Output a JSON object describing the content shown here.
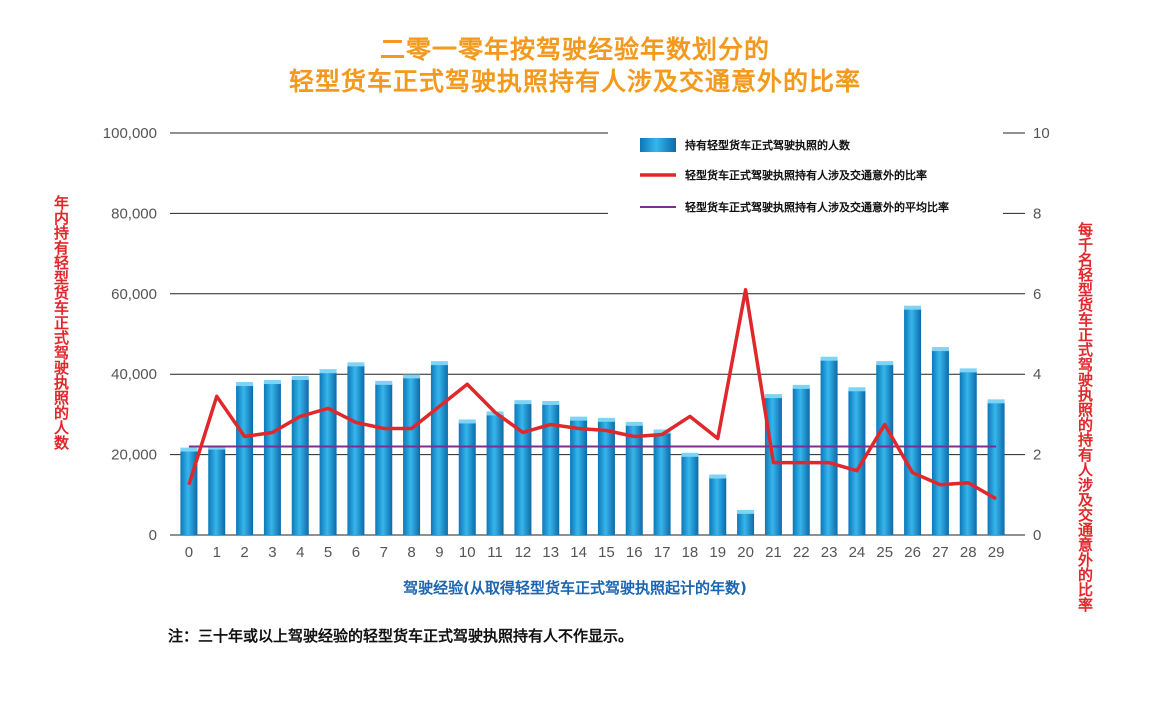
{
  "chart_data": {
    "type": "bar",
    "title": "二零一零年按驾驶经验年数划分的",
    "subtitle": "轻型货车正式驾驶执照持有人涉及交通意外的比率",
    "xlabel": "驾驶经验(从取得轻型货车正式驾驶执照起计的年数)",
    "ylabel": "年内持有轻型货车正式驾驶执照的人数",
    "y2label": "每千名轻型货车正式驾驶执照的持有人涉及交通意外的比率",
    "categories": [
      "0",
      "1",
      "2",
      "3",
      "4",
      "5",
      "6",
      "7",
      "8",
      "9",
      "10",
      "11",
      "12",
      "13",
      "14",
      "15",
      "16",
      "17",
      "18",
      "19",
      "20",
      "21",
      "22",
      "23",
      "24",
      "25",
      "26",
      "27",
      "28",
      "29"
    ],
    "ylim": [
      0,
      100000
    ],
    "y2lim": [
      0,
      10
    ],
    "y_ticks": [
      "0",
      "20,000",
      "40,000",
      "60,000",
      "80,000",
      "100,000"
    ],
    "y2_ticks": [
      "0",
      "2",
      "4",
      "6",
      "8",
      "10"
    ],
    "grid": true,
    "legend_position": "top-right",
    "series": [
      {
        "name": "持有轻型货车正式驾驶执照的人数",
        "type": "bar",
        "axis": "left",
        "color": "#1b9ad6",
        "values": [
          21000,
          21500,
          37300,
          37800,
          38800,
          40500,
          42200,
          37600,
          39200,
          42500,
          28000,
          30000,
          32800,
          32600,
          28700,
          28400,
          27400,
          25500,
          19700,
          14300,
          5500,
          34300,
          36600,
          43600,
          36000,
          42500,
          56300,
          46000,
          40700,
          33000
        ]
      },
      {
        "name": "轻型货车正式驾驶执照持有人涉及交通意外的比率",
        "type": "line",
        "axis": "right",
        "color": "#e0282c",
        "values": [
          1.25,
          3.45,
          2.45,
          2.55,
          2.95,
          3.15,
          2.8,
          2.65,
          2.65,
          3.2,
          3.75,
          3.05,
          2.55,
          2.75,
          2.65,
          2.6,
          2.45,
          2.5,
          2.95,
          2.4,
          6.1,
          1.8,
          1.8,
          1.8,
          1.6,
          2.75,
          1.55,
          1.25,
          1.3,
          0.9
        ]
      },
      {
        "name": "轻型货车正式驾驶执照持有人涉及交通意外的平均比率",
        "type": "line",
        "axis": "right",
        "color": "#7b2f8e",
        "values": [
          2.2,
          2.2,
          2.2,
          2.2,
          2.2,
          2.2,
          2.2,
          2.2,
          2.2,
          2.2,
          2.2,
          2.2,
          2.2,
          2.2,
          2.2,
          2.2,
          2.2,
          2.2,
          2.2,
          2.2,
          2.2,
          2.2,
          2.2,
          2.2,
          2.2,
          2.2,
          2.2,
          2.2,
          2.2,
          2.2
        ]
      }
    ]
  },
  "note": "注：三十年或以上驾驶经验的轻型货车正式驾驶执照持有人不作显示。"
}
